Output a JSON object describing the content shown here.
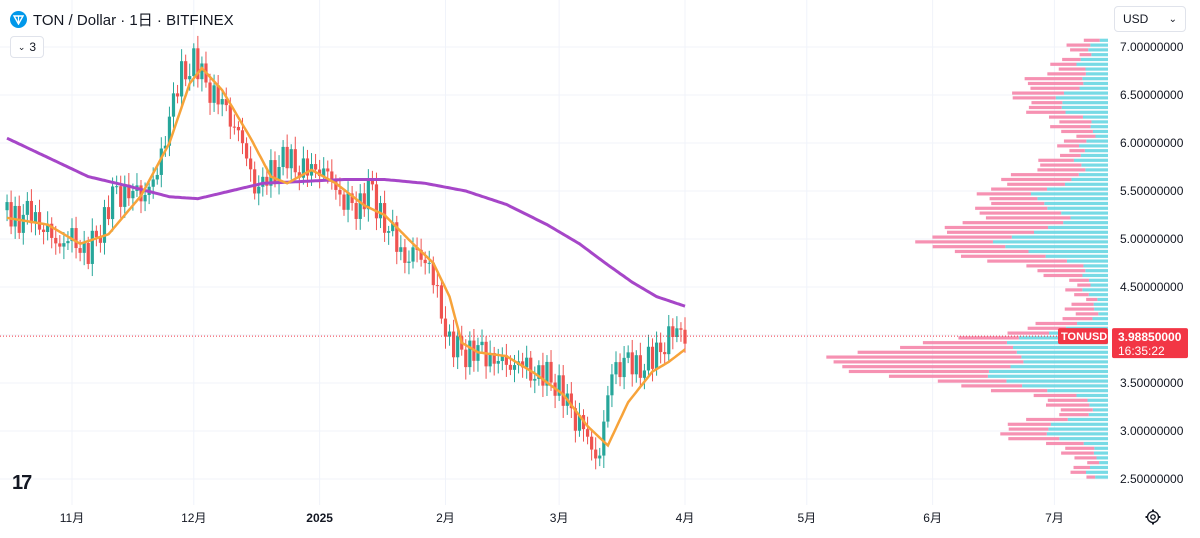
{
  "header": {
    "symbol": "TON",
    "title": "TON / Dollar · 1日 · BITFINEX",
    "indicator_count": "3"
  },
  "currency_select": {
    "value": "USD"
  },
  "price_tag": {
    "ticker": "TONUSD",
    "price": "3.98850000",
    "countdown": "16:35:22",
    "color": "#f23645"
  },
  "colors": {
    "up": "#26a69a",
    "down": "#ef5350",
    "ma_fast": "#f7a33a",
    "ma_slow": "#a646c8",
    "vp_up": "#5fd3e0",
    "vp_down": "#f47ea4"
  },
  "chart_data": {
    "type": "candlestick",
    "symbol": "TONUSD",
    "timeframe": "1日",
    "ylim": [
      2.4,
      7.15
    ],
    "y_ticks": [
      "7.00000000",
      "6.50000000",
      "6.00000000",
      "5.50000000",
      "5.00000000",
      "4.50000000",
      "4.00000000",
      "3.50000000",
      "3.00000000",
      "2.50000000"
    ],
    "y_tick_values": [
      7.0,
      6.5,
      6.0,
      5.5,
      5.0,
      4.5,
      4.0,
      3.5,
      3.0,
      2.5
    ],
    "x_ticks": [
      {
        "label": "11月",
        "day": 31
      },
      {
        "label": "12月",
        "day": 61
      },
      {
        "label": "2025",
        "day": 92
      },
      {
        "label": "2月",
        "day": 123
      },
      {
        "label": "3月",
        "day": 151
      },
      {
        "label": "4月",
        "day": 182
      },
      {
        "label": "5月",
        "day": 212
      },
      {
        "label": "6月",
        "day": 243
      },
      {
        "label": "7月",
        "day": 273
      }
    ],
    "xlim_days": [
      15,
      297
    ],
    "anchors_close": [
      [
        15,
        5.3
      ],
      [
        18,
        5.2
      ],
      [
        21,
        5.28
      ],
      [
        25,
        5.05
      ],
      [
        28,
        4.95
      ],
      [
        31,
        5.0
      ],
      [
        35,
        4.85
      ],
      [
        38,
        5.1
      ],
      [
        41,
        5.45
      ],
      [
        44,
        5.5
      ],
      [
        48,
        5.45
      ],
      [
        52,
        5.65
      ],
      [
        55,
        6.3
      ],
      [
        58,
        6.7
      ],
      [
        61,
        6.85
      ],
      [
        63,
        6.7
      ],
      [
        66,
        6.5
      ],
      [
        69,
        6.35
      ],
      [
        72,
        6.1
      ],
      [
        75,
        5.7
      ],
      [
        77,
        5.5
      ],
      [
        80,
        5.7
      ],
      [
        84,
        5.85
      ],
      [
        88,
        5.7
      ],
      [
        92,
        5.75
      ],
      [
        95,
        5.6
      ],
      [
        98,
        5.4
      ],
      [
        101,
        5.3
      ],
      [
        104,
        5.55
      ],
      [
        106,
        5.35
      ],
      [
        109,
        5.1
      ],
      [
        113,
        4.8
      ],
      [
        116,
        4.85
      ],
      [
        119,
        4.75
      ],
      [
        122,
        4.2
      ],
      [
        124,
        3.95
      ],
      [
        127,
        3.8
      ],
      [
        130,
        3.85
      ],
      [
        133,
        3.8
      ],
      [
        137,
        3.7
      ],
      [
        141,
        3.7
      ],
      [
        145,
        3.6
      ],
      [
        149,
        3.55
      ],
      [
        151,
        3.45
      ],
      [
        154,
        3.2
      ],
      [
        157,
        3.05
      ],
      [
        159,
        2.75
      ],
      [
        161,
        2.8
      ],
      [
        164,
        3.6
      ],
      [
        167,
        3.75
      ],
      [
        170,
        3.65
      ],
      [
        174,
        3.75
      ],
      [
        178,
        3.98
      ],
      [
        181,
        4.05
      ],
      [
        182,
        3.99
      ]
    ],
    "ma_fast": [
      [
        15,
        5.22
      ],
      [
        25,
        5.15
      ],
      [
        33,
        4.95
      ],
      [
        40,
        5.05
      ],
      [
        48,
        5.45
      ],
      [
        55,
        6.0
      ],
      [
        60,
        6.62
      ],
      [
        63,
        6.78
      ],
      [
        68,
        6.55
      ],
      [
        75,
        6.05
      ],
      [
        80,
        5.65
      ],
      [
        84,
        5.58
      ],
      [
        90,
        5.72
      ],
      [
        96,
        5.58
      ],
      [
        103,
        5.35
      ],
      [
        108,
        5.25
      ],
      [
        115,
        4.95
      ],
      [
        120,
        4.75
      ],
      [
        124,
        4.4
      ],
      [
        127,
        3.92
      ],
      [
        131,
        3.82
      ],
      [
        138,
        3.78
      ],
      [
        145,
        3.6
      ],
      [
        152,
        3.38
      ],
      [
        158,
        3.05
      ],
      [
        163,
        2.85
      ],
      [
        168,
        3.3
      ],
      [
        174,
        3.62
      ],
      [
        178,
        3.72
      ],
      [
        182,
        3.85
      ]
    ],
    "ma_slow": [
      [
        15,
        6.05
      ],
      [
        25,
        5.85
      ],
      [
        35,
        5.65
      ],
      [
        45,
        5.55
      ],
      [
        55,
        5.44
      ],
      [
        62,
        5.42
      ],
      [
        70,
        5.5
      ],
      [
        78,
        5.58
      ],
      [
        88,
        5.6
      ],
      [
        98,
        5.62
      ],
      [
        108,
        5.62
      ],
      [
        118,
        5.58
      ],
      [
        128,
        5.5
      ],
      [
        138,
        5.36
      ],
      [
        148,
        5.15
      ],
      [
        156,
        4.95
      ],
      [
        163,
        4.73
      ],
      [
        169,
        4.55
      ],
      [
        175,
        4.4
      ],
      [
        182,
        4.3
      ]
    ],
    "last_price": 3.9885
  }
}
